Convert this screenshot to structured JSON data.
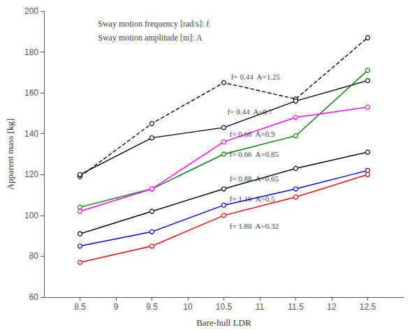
{
  "chart_data": {
    "type": "line",
    "xlabel": "Bare-hull LDR",
    "ylabel": "Apparent mass [kg]",
    "xlim": [
      8.0,
      13.0
    ],
    "ylim": [
      60,
      200
    ],
    "xticks": [
      8.5,
      9,
      9.5,
      10,
      10.5,
      11,
      11.5,
      12,
      12.5
    ],
    "yticks": [
      60,
      80,
      100,
      120,
      140,
      160,
      180,
      200
    ],
    "grid": false,
    "x": [
      8.5,
      9.5,
      10.5,
      11.5,
      12.5
    ],
    "series": [
      {
        "name": "f= 0.44  A=1.25",
        "color": "black",
        "line_style": "dashed",
        "marker": "circle",
        "values": [
          119,
          145,
          165,
          157,
          187
        ]
      },
      {
        "name": "f= 0.44  A=0.7",
        "color": "black",
        "line_style": "solid",
        "marker": "circle",
        "values": [
          120,
          138,
          143,
          156,
          166
        ]
      },
      {
        "name": "f= 0.66  A=0.9",
        "color": "green",
        "line_style": "solid",
        "marker": "circle",
        "values": [
          104,
          113,
          130,
          139,
          171
        ]
      },
      {
        "name": "f= 0.66  A=0.85",
        "color": "magenta",
        "line_style": "solid",
        "marker": "circle",
        "values": [
          102,
          113,
          136,
          148,
          153
        ]
      },
      {
        "name": "f= 0.88  A=0.65",
        "color": "black",
        "line_style": "solid",
        "marker": "circle",
        "values": [
          91,
          102,
          113,
          123,
          131
        ]
      },
      {
        "name": "f= 1.10  A=0.5",
        "color": "blue",
        "line_style": "solid",
        "marker": "circle",
        "values": [
          85,
          92,
          105,
          113,
          122
        ]
      },
      {
        "name": "f= 1.80  A=0.32",
        "color": "red",
        "line_style": "solid",
        "marker": "circle",
        "values": [
          77,
          85,
          100,
          109,
          120
        ]
      }
    ],
    "inline_labels": [
      {
        "text": "f= 0.44  A=1.25",
        "x": 10.6,
        "y": 168,
        "color": "black"
      },
      {
        "text": "f= 0.44  A=0.7",
        "x": 10.55,
        "y": 151,
        "color": "black"
      },
      {
        "text": "f= 0.66  A=0.9",
        "x": 10.58,
        "y": 140,
        "color": "black"
      },
      {
        "text": "f= 0.66  A=0.85",
        "x": 10.58,
        "y": 130,
        "color": "black"
      },
      {
        "text": "f= 0.88  A=0.65",
        "x": 10.58,
        "y": 118,
        "color": "black"
      },
      {
        "text": "f= 1.10  A=0.5",
        "x": 10.58,
        "y": 108,
        "color": "black"
      },
      {
        "text": "f= 1.80  A=0.32",
        "x": 10.58,
        "y": 95,
        "color": "black"
      }
    ],
    "annotations": [
      {
        "text": "Sway motion frequency [rad/s]: f",
        "x": 8.75,
        "y": 196
      },
      {
        "text": "Sway motion amplitude [m]: A",
        "x": 8.75,
        "y": 189
      }
    ]
  }
}
